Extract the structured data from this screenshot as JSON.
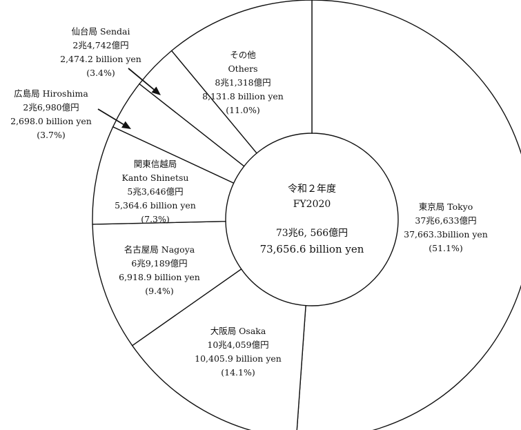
{
  "chart_data": {
    "type": "pie",
    "title": "",
    "center": {
      "line1": "令和２年度",
      "line2": "FY2020",
      "line3": "73兆6, 566億円",
      "line4": "73,656.6 billion yen"
    },
    "slices": [
      {
        "key": "tokyo",
        "ja": "東京局 Tokyo",
        "yen_text": "37兆6,633億円",
        "billion_text": "37,663.3billion yen",
        "pct_text": "(51.1%)",
        "value": 37663.3,
        "percent": 51.1
      },
      {
        "key": "osaka",
        "ja": "大阪局 Osaka",
        "yen_text": "10兆4,059億円",
        "billion_text": "10,405.9 billion yen",
        "pct_text": "(14.1%)",
        "value": 10405.9,
        "percent": 14.1
      },
      {
        "key": "nagoya",
        "ja": "名古屋局 Nagoya",
        "yen_text": "6兆9,189億円",
        "billion_text": "6,918.9 billion yen",
        "pct_text": "(9.4%)",
        "value": 6918.9,
        "percent": 9.4
      },
      {
        "key": "kanto",
        "ja": "関東信越局",
        "en": "Kanto Shinetsu",
        "yen_text": "5兆3,646億円",
        "billion_text": "5,364.6 billion yen",
        "pct_text": "(7.3%)",
        "value": 5364.6,
        "percent": 7.3
      },
      {
        "key": "hiroshima",
        "ja": "広島局 Hiroshima",
        "yen_text": "2兆6,980億円",
        "billion_text": "2,698.0 billion yen",
        "pct_text": "(3.7%)",
        "value": 2698.0,
        "percent": 3.7
      },
      {
        "key": "sendai",
        "ja": "仙台局 Sendai",
        "yen_text": "2兆4,742億円",
        "billion_text": "2,474.2 billion yen",
        "pct_text": "(3.4%)",
        "value": 2474.2,
        "percent": 3.4
      },
      {
        "key": "others",
        "ja": "その他",
        "en": "Others",
        "yen_text": "8兆1,318億円",
        "billion_text": "8,131.8 billion yen",
        "pct_text": "(11.0%)",
        "value": 8131.8,
        "percent": 11.0
      }
    ],
    "colors": {
      "fill": "#ffffff",
      "stroke": "#111111"
    }
  }
}
